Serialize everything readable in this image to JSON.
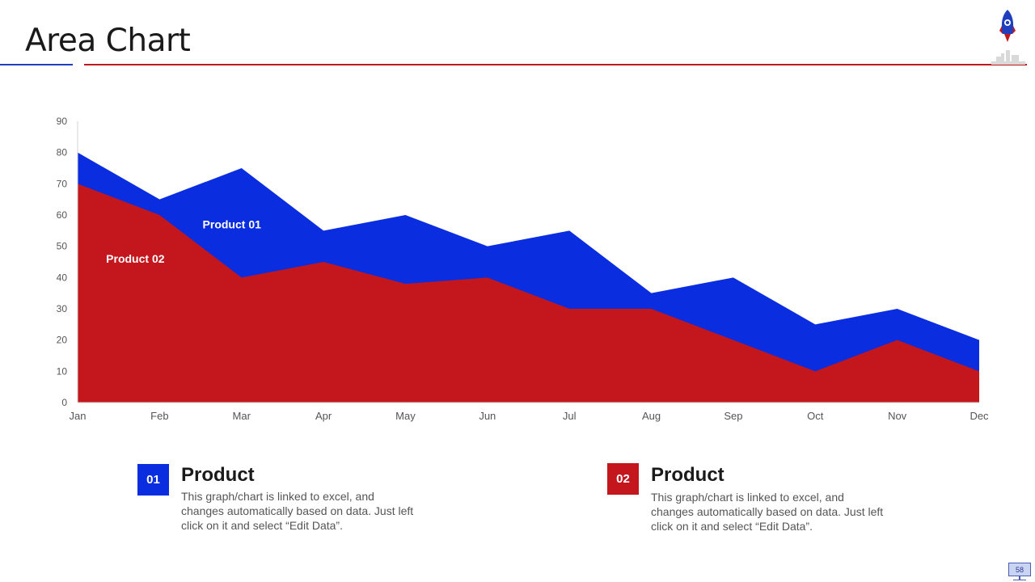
{
  "slide": {
    "title": "Area Chart",
    "page_number": "58"
  },
  "colors": {
    "product01": "#0a2de0",
    "product02": "#c4161d",
    "axis": "#d0d0d0",
    "tick_label": "#555555"
  },
  "chart_data": {
    "type": "area",
    "stacked": false,
    "categories": [
      "Jan",
      "Feb",
      "Mar",
      "Apr",
      "May",
      "Jun",
      "Jul",
      "Aug",
      "Sep",
      "Oct",
      "Nov",
      "Dec"
    ],
    "series": [
      {
        "name": "Product 01",
        "values": [
          80,
          65,
          75,
          55,
          60,
          50,
          55,
          35,
          40,
          25,
          30,
          20
        ]
      },
      {
        "name": "Product 02",
        "values": [
          70,
          60,
          40,
          45,
          38,
          40,
          30,
          30,
          20,
          10,
          20,
          10
        ]
      }
    ],
    "ylim": [
      0,
      90
    ],
    "yticks": [
      0,
      10,
      20,
      30,
      40,
      50,
      60,
      70,
      80,
      90
    ],
    "grid": false,
    "series_labels": [
      {
        "text": "Product 01",
        "series": 0,
        "category": "Mar",
        "value": 57
      },
      {
        "text": "Product 02",
        "series": 1,
        "category": "Feb",
        "value": 46
      }
    ]
  },
  "legend": [
    {
      "number": "01",
      "title": "Product",
      "text": "This graph/chart is linked to excel, and changes automatically based on data. Just left click on it and select “Edit Data”."
    },
    {
      "number": "02",
      "title": "Product",
      "text": "This graph/chart is linked to excel, and changes automatically based on data. Just left click on it and select “Edit Data”."
    }
  ]
}
